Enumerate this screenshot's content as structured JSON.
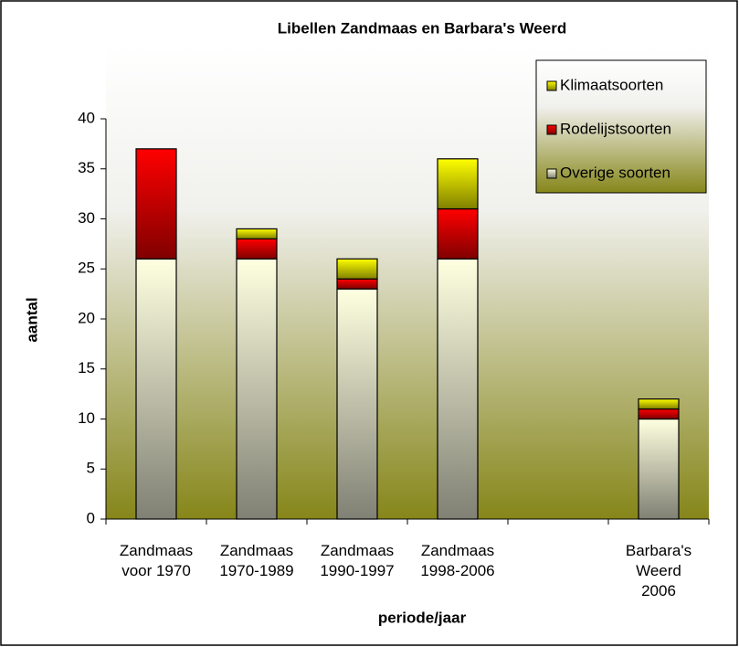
{
  "chart_data": {
    "type": "stacked_bar",
    "title": "Libellen Zandmaas en Barbara's Weerd",
    "xlabel": "periode/jaar",
    "ylabel": "aantal",
    "categories": [
      "Zandmaas voor 1970",
      "Zandmaas 1970-1989",
      "Zandmaas 1990-1997",
      "Zandmaas 1998-2006",
      null,
      "Barbara's Weerd 2006"
    ],
    "series": [
      {
        "name": "Overige soorten",
        "color": "#ffffe0",
        "values": [
          26,
          26,
          23,
          26,
          null,
          10
        ]
      },
      {
        "name": "Rodelijstsoorten",
        "color": "#ff0000",
        "values": [
          11,
          2,
          1,
          5,
          null,
          1
        ]
      },
      {
        "name": "Klimaatsoorten",
        "color": "#ffff00",
        "values": [
          0,
          1,
          2,
          5,
          null,
          1
        ]
      }
    ],
    "ylim": [
      0,
      40
    ],
    "yticks": [
      0,
      5,
      10,
      15,
      20,
      25,
      30,
      35,
      40
    ],
    "legend": "upper right"
  }
}
